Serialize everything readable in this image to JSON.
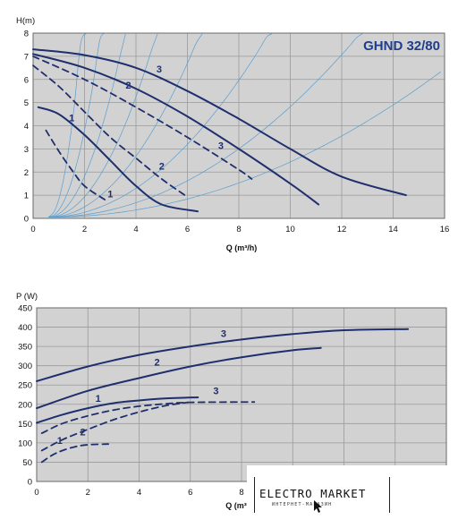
{
  "colors": {
    "curve": "#1f2f6e",
    "thin": "#5a9fcf",
    "panel": "#d2d2d2",
    "grid": "#9a9a9a",
    "title": "#1f3d8c"
  },
  "chart_data": [
    {
      "type": "line",
      "title": "GHND 32/80",
      "ylabel": "H(m)",
      "xlabel": "Q (m³/h)",
      "xlim": [
        0,
        16
      ],
      "ylim": [
        0,
        8
      ],
      "xticks": [
        "0",
        "2",
        "4",
        "6",
        "8",
        "10",
        "12",
        "14",
        "16"
      ],
      "yticks": [
        "0",
        "1",
        "2",
        "3",
        "4",
        "5",
        "6",
        "7",
        "8"
      ],
      "grid": true,
      "series": [
        {
          "name": "3",
          "style": "solid",
          "x": [
            0,
            2,
            4,
            6,
            8,
            10,
            12,
            14.5
          ],
          "y": [
            7.3,
            7.05,
            6.5,
            5.5,
            4.3,
            3.0,
            1.8,
            1.0
          ]
        },
        {
          "name": "2",
          "style": "solid",
          "x": [
            0,
            2,
            4,
            6,
            8,
            10,
            11.1
          ],
          "y": [
            7.1,
            6.5,
            5.6,
            4.4,
            3.0,
            1.5,
            0.6
          ]
        },
        {
          "name": "1",
          "style": "solid",
          "x": [
            0.2,
            1,
            2,
            3,
            4,
            5,
            6.4
          ],
          "y": [
            4.8,
            4.5,
            3.6,
            2.5,
            1.4,
            0.6,
            0.3
          ]
        },
        {
          "name": "3",
          "style": "dashed",
          "x": [
            0,
            2,
            4,
            6,
            8,
            8.5
          ],
          "y": [
            7.0,
            6.0,
            4.8,
            3.5,
            2.1,
            1.7
          ]
        },
        {
          "name": "2",
          "style": "dashed",
          "x": [
            0,
            1,
            2,
            3,
            4,
            5,
            5.9
          ],
          "y": [
            6.6,
            5.7,
            4.6,
            3.5,
            2.6,
            1.7,
            1.0
          ]
        },
        {
          "name": "1",
          "style": "dashed",
          "x": [
            0.5,
            1,
            1.5,
            2,
            2.8
          ],
          "y": [
            3.8,
            2.9,
            2.1,
            1.4,
            0.8
          ]
        }
      ],
      "curve_labels": [
        {
          "text": "3",
          "x": 4.9,
          "y": 6.3
        },
        {
          "text": "2",
          "x": 3.7,
          "y": 5.6
        },
        {
          "text": "1",
          "x": 1.5,
          "y": 4.2
        },
        {
          "text": "3",
          "x": 7.3,
          "y": 3.0
        },
        {
          "text": "2",
          "x": 5.0,
          "y": 2.1
        },
        {
          "text": "1",
          "x": 3.0,
          "y": 0.9
        }
      ]
    },
    {
      "type": "line",
      "ylabel": "P (W)",
      "xlabel": "Q (m³",
      "xlim": [
        0,
        16
      ],
      "ylim": [
        0,
        450
      ],
      "xticks": [
        "0",
        "2",
        "4",
        "6",
        "8"
      ],
      "yticks": [
        "0",
        "50",
        "100",
        "150",
        "200",
        "250",
        "300",
        "350",
        "400",
        "450"
      ],
      "grid": true,
      "series": [
        {
          "name": "3",
          "style": "solid",
          "x": [
            0,
            2,
            4,
            6,
            8,
            10,
            12,
            14.5
          ],
          "y": [
            260,
            298,
            328,
            350,
            368,
            382,
            392,
            395
          ]
        },
        {
          "name": "2",
          "style": "solid",
          "x": [
            0,
            2,
            4,
            6,
            8,
            10,
            11.1
          ],
          "y": [
            190,
            235,
            268,
            298,
            322,
            340,
            346
          ]
        },
        {
          "name": "1",
          "style": "solid",
          "x": [
            0,
            1,
            2,
            3,
            4,
            5,
            6.3
          ],
          "y": [
            152,
            173,
            190,
            203,
            210,
            215,
            218
          ]
        },
        {
          "name": "3",
          "style": "dashed",
          "x": [
            0.2,
            1,
            2,
            3,
            4,
            5,
            6,
            8.5
          ],
          "y": [
            125,
            150,
            170,
            185,
            195,
            201,
            205,
            206
          ]
        },
        {
          "name": "2",
          "style": "dashed",
          "x": [
            0.2,
            1,
            2,
            3,
            4,
            5,
            5.9
          ],
          "y": [
            80,
            108,
            135,
            160,
            180,
            196,
            205
          ]
        },
        {
          "name": "1",
          "style": "dashed",
          "x": [
            0.2,
            0.6,
            1,
            1.5,
            2,
            2.8
          ],
          "y": [
            50,
            68,
            80,
            90,
            95,
            97
          ]
        }
      ],
      "curve_labels": [
        {
          "text": "3",
          "x": 7.3,
          "y": 375
        },
        {
          "text": "2",
          "x": 4.7,
          "y": 300
        },
        {
          "text": "1",
          "x": 2.4,
          "y": 207
        },
        {
          "text": "3",
          "x": 7.0,
          "y": 226
        },
        {
          "text": "2",
          "x": 1.8,
          "y": 120
        },
        {
          "text": "1",
          "x": 0.9,
          "y": 97
        }
      ]
    }
  ],
  "watermark": {
    "main": "ELECTRO MARKET",
    "sub": "ИНТЕРНЕТ-МАГАЗИН"
  }
}
